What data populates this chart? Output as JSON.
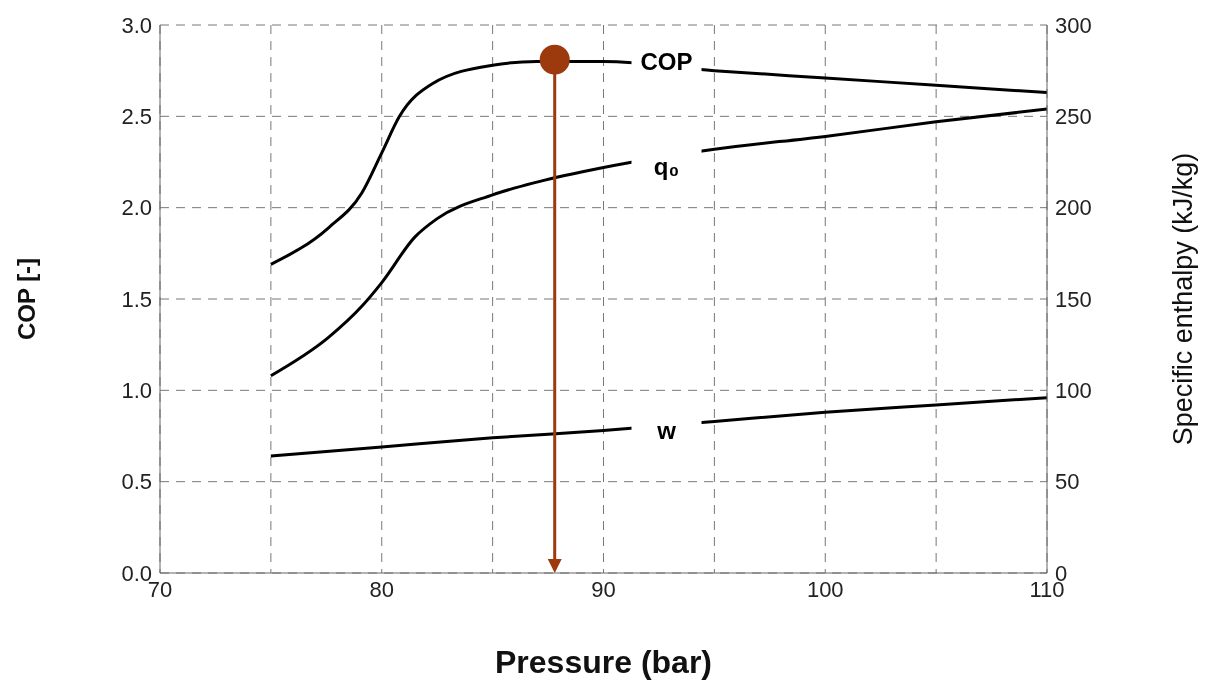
{
  "chart_data": {
    "type": "line",
    "xlabel": "Pressure (bar)",
    "ylabel": "COP [-]",
    "y2label": "Specific enthalpy (kJ/kg)",
    "xlim": [
      70,
      110
    ],
    "xticks": [
      70,
      {
        "value": 75,
        "label": null
      },
      80,
      {
        "value": 85,
        "label": null
      },
      90,
      {
        "value": 95,
        "label": null
      },
      100,
      {
        "value": 105,
        "label": null
      },
      110
    ],
    "ylim": [
      0,
      3
    ],
    "yticks": [
      {
        "value": 0,
        "label": "0.0"
      },
      0.5,
      {
        "value": 1,
        "label": "1.0"
      },
      1.5,
      {
        "value": 2,
        "label": "2.0"
      },
      2.5,
      {
        "value": 3,
        "label": "3.0"
      }
    ],
    "y2lim": [
      0,
      300
    ],
    "y2ticks": [
      0,
      50,
      100,
      150,
      200,
      250,
      300
    ],
    "grid": true,
    "line_style": "solid",
    "marker": "none",
    "series": [
      {
        "name": "COP",
        "color": "#000000",
        "x": [
          75,
          77.6,
          79.1,
          80,
          80.8,
          82.3,
          85,
          87,
          90,
          95,
          100,
          105,
          110
        ],
        "values": [
          1.69,
          1.89,
          2.08,
          2.3,
          2.5,
          2.68,
          2.78,
          2.8,
          2.8,
          2.75,
          2.71,
          2.67,
          2.63
        ]
      },
      {
        "name": "q₀",
        "color": "#000000",
        "axis": "y2",
        "x": [
          75,
          77.6,
          79.1,
          80,
          81.5,
          82.5,
          85,
          87,
          90,
          95,
          100,
          105,
          110
        ],
        "values": [
          108,
          129,
          146,
          159,
          184,
          194,
          207,
          214,
          222,
          232,
          239,
          247,
          254
        ]
      },
      {
        "name": "w",
        "color": "#000000",
        "axis": "y2",
        "x": [
          75,
          80,
          85,
          90,
          95,
          100,
          105,
          110
        ],
        "values": [
          64,
          69,
          74,
          78,
          83,
          88,
          92,
          96
        ]
      },
      {
        "type": "scatter",
        "color": "#9c3a0e",
        "marker": "circle",
        "x": [
          87.8
        ],
        "values": [
          2.81
        ]
      }
    ]
  }
}
